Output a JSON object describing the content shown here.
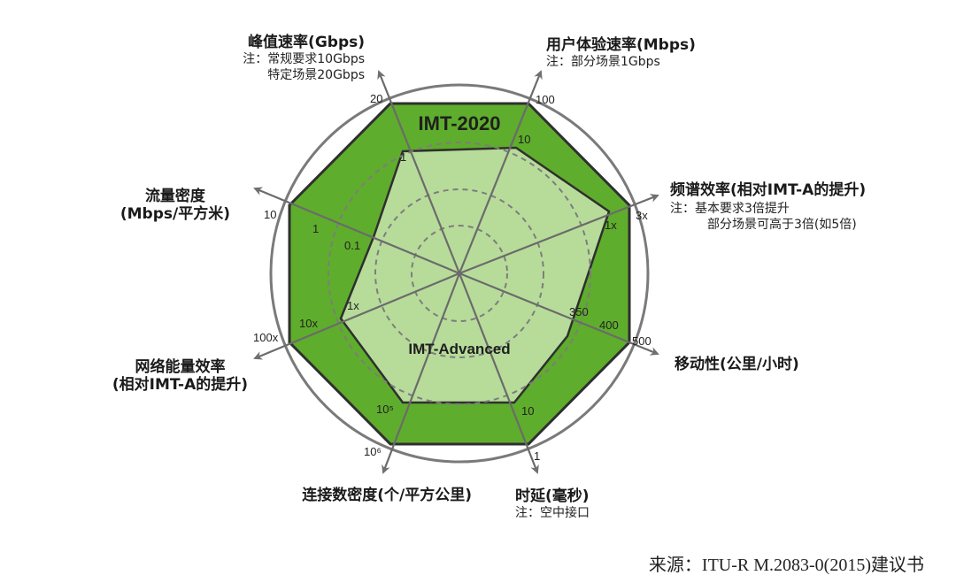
{
  "diagram": {
    "outer_label": "IMT-2020",
    "inner_label": "IMT-Advanced",
    "colors": {
      "outer_fill": "#5fad2c",
      "inner_fill": "#b7dc9a",
      "stroke": "#2f2f2f",
      "ring": "#7a7a7a",
      "axis": "#6b6b6b"
    },
    "axes": [
      {
        "key": "peak",
        "title": "峰值速率(Gbps)",
        "notes": [
          "注：常规要求10Gbps",
          "特定场景20Gbps"
        ],
        "outer_tick": "20",
        "inner_tick": "1"
      },
      {
        "key": "user",
        "title": "用户体验速率(Mbps)",
        "notes": [
          "注：部分场景1Gbps"
        ],
        "outer_tick": "100",
        "inner_tick": "10"
      },
      {
        "key": "spectrum",
        "title": "频谱效率(相对IMT-A的提升)",
        "notes": [
          "注：基本要求3倍提升",
          "部分场景可高于3倍(如5倍)"
        ],
        "outer_tick": "3x",
        "inner_tick": "1x"
      },
      {
        "key": "mobility",
        "title": "移动性(公里/小时)",
        "notes": [],
        "outer_tick": "500",
        "inner_tick": "350",
        "extra_tick": "400"
      },
      {
        "key": "latency",
        "title": "时延(毫秒)",
        "notes": [
          "注：空中接口"
        ],
        "outer_tick": "1",
        "inner_tick": "10"
      },
      {
        "key": "conn",
        "title": "连接数密度(个/平方公里)",
        "notes": [],
        "outer_tick": "10⁶",
        "inner_tick": "10⁵"
      },
      {
        "key": "energy",
        "title": "网络能量效率",
        "title2": "(相对IMT-A的提升)",
        "notes": [],
        "outer_tick": "100x",
        "inner_tick": "1x",
        "mid_tick": "10x"
      },
      {
        "key": "traffic",
        "title": "流量密度",
        "title2": "(Mbps/平方米)",
        "notes": [],
        "outer_tick": "10",
        "inner_tick": "0.1",
        "mid_tick": "1"
      }
    ]
  },
  "source": "来源：ITU-R M.2083-0(2015)建议书"
}
